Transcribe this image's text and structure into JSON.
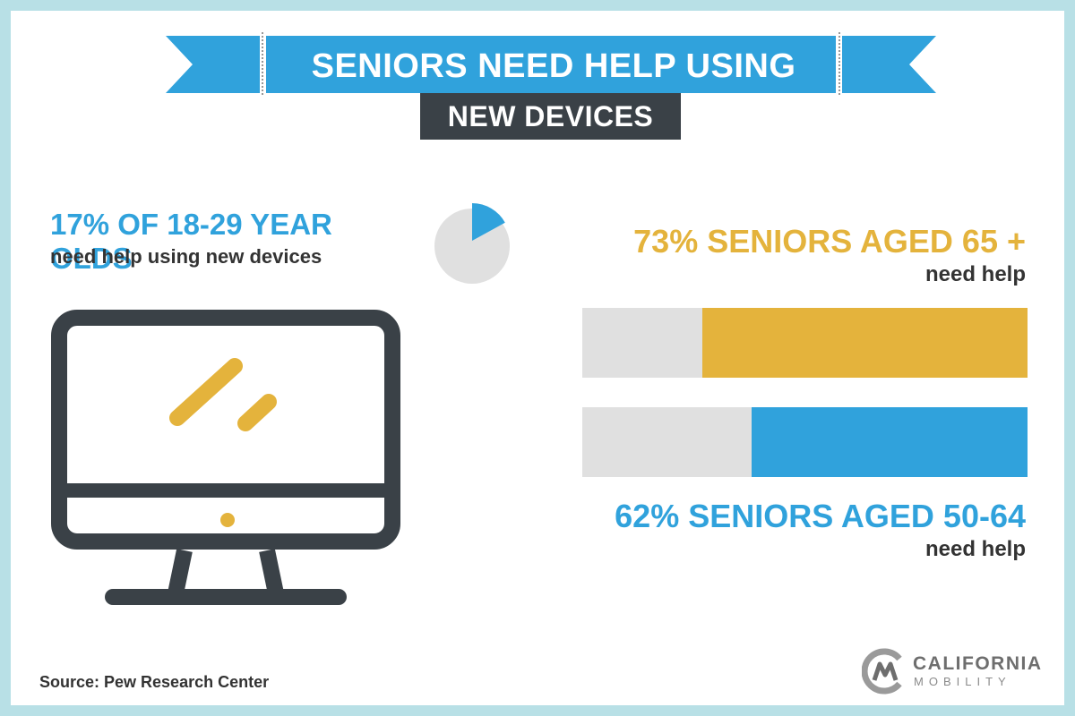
{
  "title": {
    "line1": "SENIORS NEED HELP USING",
    "line2": "NEW DEVICES"
  },
  "stats": {
    "young": {
      "headline": "17% OF 18-29 YEAR OLDS",
      "sub": "need help using new devices",
      "value": 17
    },
    "seniors_65": {
      "headline": "73% SENIORS AGED 65 +",
      "sub": "need help",
      "value": 73
    },
    "seniors_50": {
      "headline": "62% SENIORS AGED 50-64",
      "sub": "need help",
      "value": 62
    }
  },
  "source": "Source: Pew Research Center",
  "logo": {
    "line1": "CALIFORNIA",
    "line2": "MOBILITY"
  },
  "colors": {
    "blue": "#30a2dc",
    "gold": "#e4b33c",
    "dark": "#3a4147",
    "gray": "#e0e0e0",
    "frame": "#b8e0e6"
  },
  "icons": [
    "desktop-monitor-icon",
    "california-mobility-logo-icon",
    "pie-chart-icon"
  ]
}
